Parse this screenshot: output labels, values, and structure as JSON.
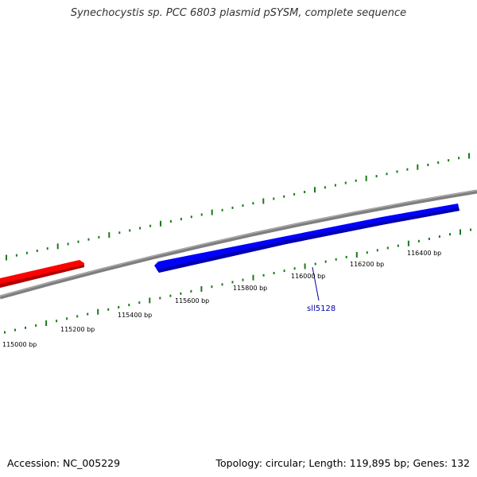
{
  "title": "Synechocystis sp. PCC 6803 plasmid pSYSM, complete sequence",
  "footer": {
    "accession": "Accession: NC_005229",
    "info": "Topology: circular; Length: 119,895 bp; Genes: 132"
  },
  "colors": {
    "backbone": "#808080",
    "forward_gene": "#ff0000",
    "reverse_gene": "#0000ff",
    "ticks": "#1a7a1a",
    "label_line": "#0000aa"
  },
  "position_labels": [
    "115000 bp",
    "115200 bp",
    "115400 bp",
    "115600 bp",
    "115800 bp",
    "116000 bp",
    "116200 bp",
    "116400 bp"
  ],
  "genes": [
    {
      "name": "",
      "strand": "forward",
      "color": "#ff0000"
    },
    {
      "name": "sll5128",
      "strand": "reverse",
      "color": "#0000ff"
    }
  ]
}
